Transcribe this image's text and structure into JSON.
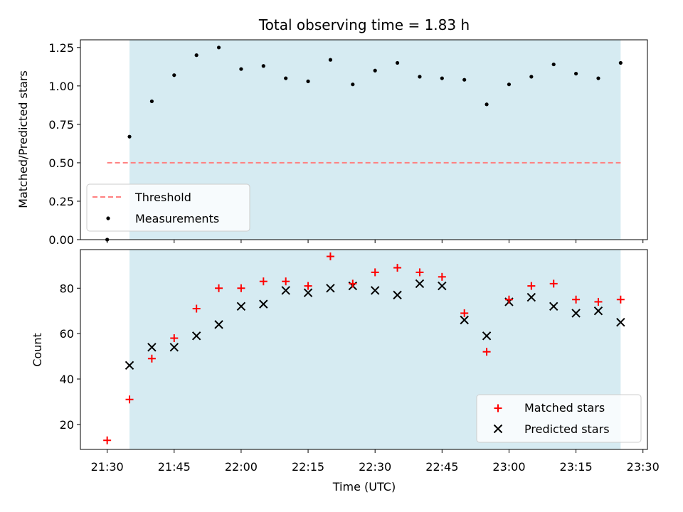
{
  "figure_title": "Total observing time = 1.83 h",
  "colors": {
    "shade": "#add8e6",
    "threshold": "#ff8080",
    "measurements": "#000000",
    "matched": "#ff0000",
    "predicted": "#000000"
  },
  "chart_data": [
    {
      "type": "scatter",
      "panel": "top",
      "ylabel": "Matched/Predicted stars",
      "xlabel": "",
      "ylim": [
        0,
        1.3
      ],
      "yticks": [
        0.0,
        0.25,
        0.5,
        0.75,
        1.0,
        1.25
      ],
      "ytick_labels": [
        "0.00",
        "0.25",
        "0.50",
        "0.75",
        "1.00",
        "1.25"
      ],
      "legend_position": "lower left",
      "shaded_span": [
        "21:35",
        "23:25"
      ],
      "threshold": {
        "name": "Threshold",
        "value": 0.5,
        "x_range": [
          "21:30",
          "23:25"
        ]
      },
      "series": [
        {
          "name": "Measurements",
          "x": [
            "21:30",
            "21:35",
            "21:40",
            "21:45",
            "21:50",
            "21:55",
            "22:00",
            "22:05",
            "22:10",
            "22:15",
            "22:20",
            "22:25",
            "22:30",
            "22:35",
            "22:40",
            "22:45",
            "22:50",
            "22:55",
            "23:00",
            "23:05",
            "23:10",
            "23:15",
            "23:20",
            "23:25"
          ],
          "values": [
            0.0,
            0.67,
            0.9,
            1.07,
            1.2,
            1.25,
            1.11,
            1.13,
            1.05,
            1.03,
            1.17,
            1.01,
            1.1,
            1.15,
            1.06,
            1.05,
            1.04,
            0.88,
            1.01,
            1.06,
            1.14,
            1.08,
            1.05,
            1.15
          ]
        }
      ]
    },
    {
      "type": "scatter",
      "panel": "bottom",
      "ylabel": "Count",
      "xlabel": "Time (UTC)",
      "ylim": [
        9,
        97
      ],
      "yticks": [
        20,
        40,
        60,
        80
      ],
      "ytick_labels": [
        "20",
        "40",
        "60",
        "80"
      ],
      "xticks": [
        "21:30",
        "21:45",
        "22:00",
        "22:15",
        "22:30",
        "22:45",
        "23:00",
        "23:15",
        "23:30"
      ],
      "xlim": [
        "21:24",
        "23:31"
      ],
      "legend_position": "lower right",
      "shaded_span": [
        "21:35",
        "23:25"
      ],
      "series": [
        {
          "name": "Matched stars",
          "marker": "plus",
          "x": [
            "21:30",
            "21:35",
            "21:40",
            "21:45",
            "21:50",
            "21:55",
            "22:00",
            "22:05",
            "22:10",
            "22:15",
            "22:20",
            "22:25",
            "22:30",
            "22:35",
            "22:40",
            "22:45",
            "22:50",
            "22:55",
            "23:00",
            "23:05",
            "23:10",
            "23:15",
            "23:20",
            "23:25"
          ],
          "values": [
            13,
            31,
            49,
            58,
            71,
            80,
            80,
            83,
            83,
            81,
            94,
            82,
            87,
            89,
            87,
            85,
            69,
            52,
            75,
            81,
            82,
            75,
            74,
            75
          ]
        },
        {
          "name": "Predicted stars",
          "marker": "x",
          "x": [
            "21:35",
            "21:40",
            "21:45",
            "21:50",
            "21:55",
            "22:00",
            "22:05",
            "22:10",
            "22:15",
            "22:20",
            "22:25",
            "22:30",
            "22:35",
            "22:40",
            "22:45",
            "22:50",
            "22:55",
            "23:00",
            "23:05",
            "23:10",
            "23:15",
            "23:20",
            "23:25"
          ],
          "values": [
            46,
            54,
            54,
            59,
            64,
            72,
            73,
            79,
            78,
            80,
            81,
            79,
            77,
            82,
            81,
            66,
            59,
            74,
            76,
            72,
            69,
            70,
            65
          ]
        }
      ]
    }
  ]
}
